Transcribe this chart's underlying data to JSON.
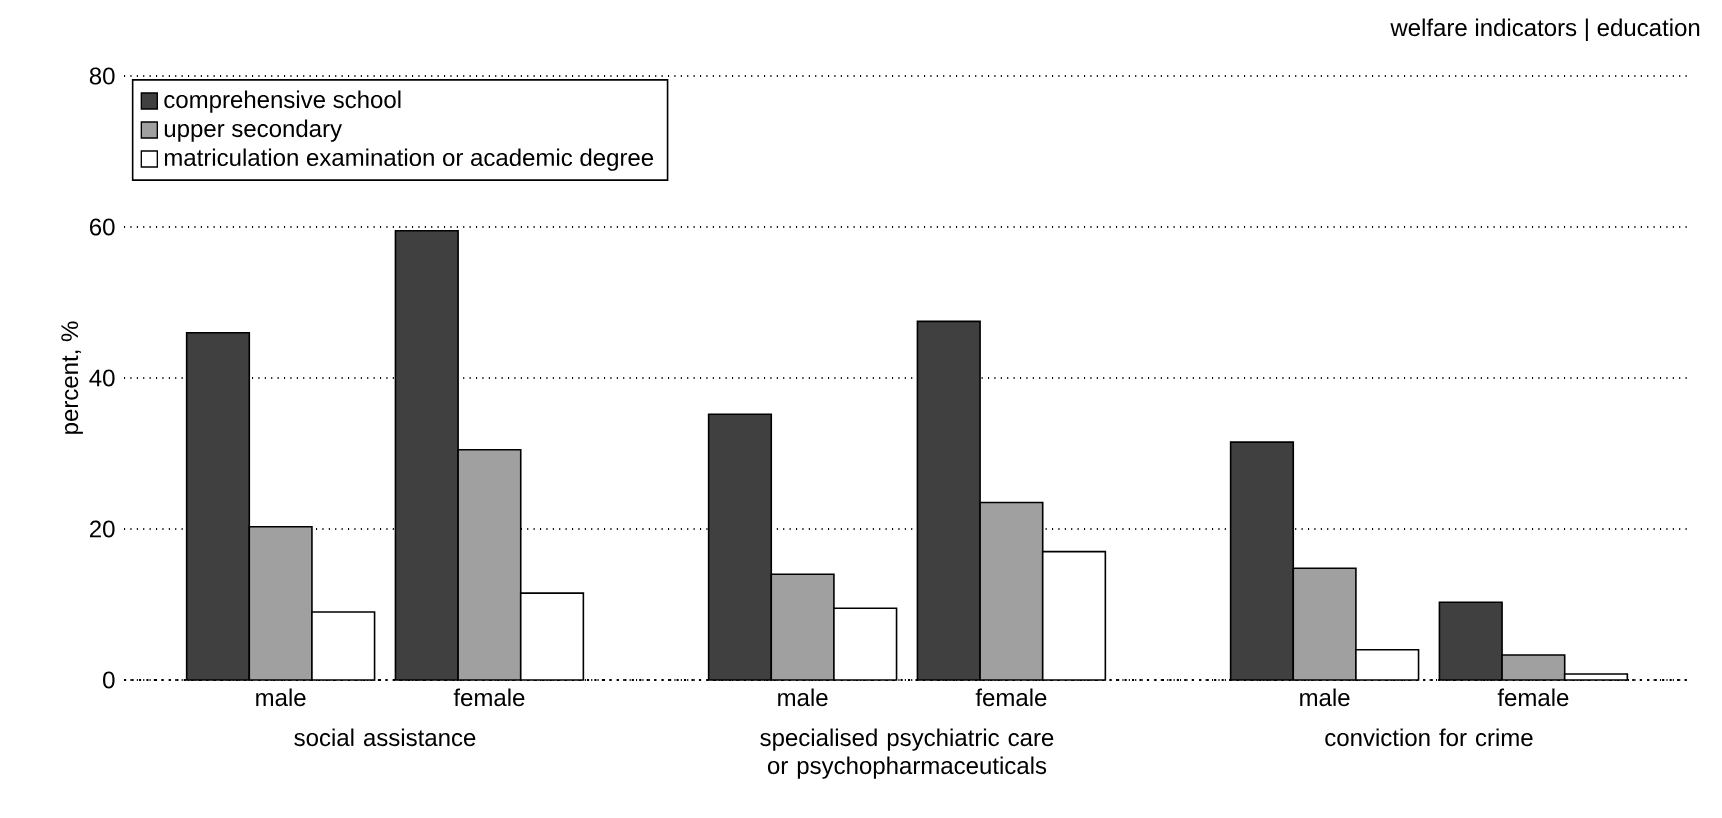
{
  "chart_data": {
    "type": "bar",
    "title": "welfare indicators | education",
    "ylabel": "percent, %",
    "categories": [
      "male",
      "female",
      "male",
      "female",
      "male",
      "female"
    ],
    "annotations": [
      "social assistance",
      "specialised psychiatric care or psychopharmaceuticals",
      "conviction for crime"
    ],
    "series": [
      {
        "name": "comprehensive school",
        "color": "#404040",
        "values": [
          46,
          59.5,
          35.2,
          47.5,
          31.5,
          10.3
        ]
      },
      {
        "name": "upper secondary",
        "color": "#a0a0a0",
        "values": [
          20.3,
          30.5,
          14,
          23.5,
          14.8,
          3.3
        ]
      },
      {
        "name": "matriculation examination or academic degree",
        "color": "#ffffff",
        "values": [
          9,
          11.5,
          9.5,
          17,
          4,
          0.8
        ]
      }
    ],
    "ylim": [
      0,
      80
    ],
    "yticks": [
      0,
      20,
      40,
      60,
      80
    ],
    "grid": "y",
    "legend": "top left"
  }
}
